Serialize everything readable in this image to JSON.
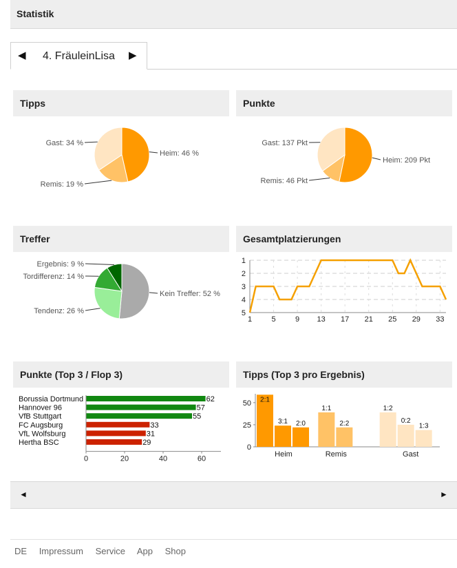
{
  "header": {
    "title": "Statistik"
  },
  "player_tab": {
    "prev_icon": "◀",
    "next_icon": "▶",
    "label": "4. FräuleinLisa"
  },
  "panels": {
    "tipps": "Tipps",
    "punkte": "Punkte",
    "treffer": "Treffer",
    "platzierungen": "Gesamtplatzierungen",
    "topflop": "Punkte (Top 3 / Flop 3)",
    "ergebnis": "Tipps (Top 3 pro Ergebnis)"
  },
  "nav": {
    "prev_icon": "◄",
    "next_icon": "►"
  },
  "footer": {
    "links": [
      "DE",
      "Impressum",
      "Service",
      "App",
      "Shop"
    ]
  },
  "colors": {
    "orange": "#ff9900",
    "light_orange": "#ffc266",
    "pale_orange": "#ffe5c2",
    "dark_green": "#006600",
    "green": "#33aa33",
    "light_green": "#99ee99",
    "gray": "#aaaaaa",
    "bar_green": "#118811",
    "bar_red": "#cc2200",
    "line": "#f5a000"
  },
  "chart_data": [
    {
      "id": "tipps",
      "type": "pie",
      "slices": [
        {
          "label": "Heim: 46 %",
          "value": 46,
          "color": "#ff9900"
        },
        {
          "label": "Remis: 19 %",
          "value": 19,
          "color": "#ffc266"
        },
        {
          "label": "Gast: 34 %",
          "value": 34,
          "color": "#ffe5c2"
        }
      ]
    },
    {
      "id": "punkte",
      "type": "pie",
      "slices": [
        {
          "label": "Heim: 209 Pkt",
          "value": 209,
          "color": "#ff9900"
        },
        {
          "label": "Remis: 46 Pkt",
          "value": 46,
          "color": "#ffc266"
        },
        {
          "label": "Gast: 137 Pkt",
          "value": 137,
          "color": "#ffe5c2"
        }
      ]
    },
    {
      "id": "treffer",
      "type": "pie",
      "slices": [
        {
          "label": "Kein Treffer: 52 %",
          "value": 52,
          "color": "#aaaaaa"
        },
        {
          "label": "Tendenz: 26 %",
          "value": 26,
          "color": "#99ee99"
        },
        {
          "label": "Tordifferenz: 14 %",
          "value": 14,
          "color": "#33aa33"
        },
        {
          "label": "Ergebnis: 9 %",
          "value": 9,
          "color": "#006600"
        }
      ]
    },
    {
      "id": "platzierungen",
      "type": "line",
      "x": [
        1,
        2,
        3,
        4,
        5,
        6,
        7,
        8,
        9,
        10,
        11,
        12,
        13,
        14,
        15,
        16,
        17,
        18,
        19,
        20,
        21,
        22,
        23,
        24,
        25,
        26,
        27,
        28,
        29,
        30,
        31,
        32,
        33,
        34
      ],
      "y": [
        5,
        3,
        3,
        3,
        3,
        4,
        4,
        4,
        3,
        3,
        3,
        2,
        1,
        1,
        1,
        1,
        1,
        1,
        1,
        1,
        1,
        1,
        1,
        1,
        1,
        2,
        2,
        1,
        2,
        3,
        3,
        3,
        3,
        4
      ],
      "xticks": [
        "1",
        "5",
        "9",
        "13",
        "17",
        "21",
        "25",
        "29",
        "33"
      ],
      "yticks": [
        "1",
        "2",
        "3",
        "4",
        "5"
      ],
      "ylim": [
        1,
        5
      ],
      "inverted_y": true,
      "grid": true
    },
    {
      "id": "topflop",
      "type": "bar",
      "orientation": "horizontal",
      "categories": [
        "Borussia Dortmund",
        "Hannover 96",
        "VfB Stuttgart",
        "FC Augsburg",
        "VfL Wolfsburg",
        "Hertha BSC"
      ],
      "values": [
        62,
        57,
        55,
        33,
        31,
        29
      ],
      "colors": [
        "#118811",
        "#118811",
        "#118811",
        "#cc2200",
        "#cc2200",
        "#cc2200"
      ],
      "xticks": [
        "0",
        "20",
        "40",
        "60"
      ],
      "xlim": [
        0,
        70
      ]
    },
    {
      "id": "ergebnis",
      "type": "bar",
      "groups": [
        {
          "name": "Heim",
          "color": "#ff9900",
          "bars": [
            {
              "label": "2:1",
              "value": 59
            },
            {
              "label": "3:1",
              "value": 24
            },
            {
              "label": "2:0",
              "value": 22
            }
          ]
        },
        {
          "name": "Remis",
          "color": "#ffc266",
          "bars": [
            {
              "label": "1:1",
              "value": 39
            },
            {
              "label": "2:2",
              "value": 22
            }
          ]
        },
        {
          "name": "Gast",
          "color": "#ffe5c2",
          "bars": [
            {
              "label": "1:2",
              "value": 39
            },
            {
              "label": "0:2",
              "value": 25
            },
            {
              "label": "1:3",
              "value": 19
            }
          ]
        }
      ],
      "yticks": [
        "0",
        "25",
        "50"
      ],
      "ylim": [
        0,
        60
      ]
    }
  ]
}
